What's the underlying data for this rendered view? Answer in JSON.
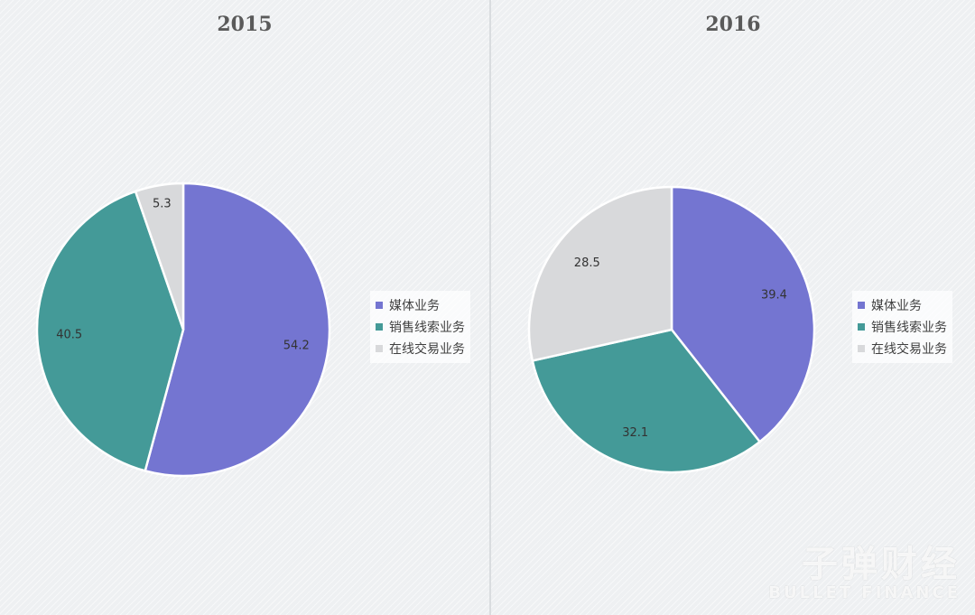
{
  "chart_data": [
    {
      "type": "pie",
      "title": "2015",
      "categories": [
        "媒体业务",
        "销售线索业务",
        "在线交易业务"
      ],
      "values": [
        54.2,
        40.5,
        5.3
      ],
      "colors": [
        "#7475d1",
        "#449a98",
        "#d8d9db"
      ],
      "legend": "right"
    },
    {
      "type": "pie",
      "title": "2016",
      "categories": [
        "媒体业务",
        "销售线索业务",
        "在线交易业务"
      ],
      "values": [
        39.4,
        32.1,
        28.5
      ],
      "colors": [
        "#7475d1",
        "#449a98",
        "#d8d9db"
      ],
      "legend": "right"
    }
  ],
  "watermark": {
    "chinese": "子弹财经",
    "english": "BULLET FINANCE"
  }
}
